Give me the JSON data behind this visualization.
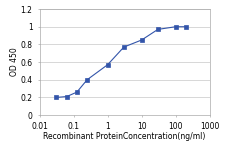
{
  "x": [
    0.031,
    0.063,
    0.125,
    0.25,
    1.0,
    3.0,
    10.0,
    30.0,
    100.0,
    200.0
  ],
  "y": [
    0.2,
    0.21,
    0.26,
    0.4,
    0.57,
    0.77,
    0.85,
    0.97,
    1.0,
    1.0
  ],
  "line_color": "#3355aa",
  "marker": "s",
  "marker_color": "#3355aa",
  "marker_size": 2.5,
  "xlabel": "Recombinant ProteinConcentration(ng/ml)",
  "ylabel": "OD 450",
  "xlim": [
    0.01,
    1000
  ],
  "ylim": [
    0,
    1.2
  ],
  "yticks": [
    0,
    0.2,
    0.4,
    0.6,
    0.8,
    1.0,
    1.2
  ],
  "xticks": [
    0.01,
    0.1,
    1,
    10,
    100,
    1000
  ],
  "xtick_labels": [
    "0.01",
    "0.1",
    "1",
    "10",
    "100",
    "1000"
  ],
  "background_color": "#ffffff",
  "grid_color": "#c8c8c8",
  "label_fontsize": 5.5,
  "tick_fontsize": 5.5
}
